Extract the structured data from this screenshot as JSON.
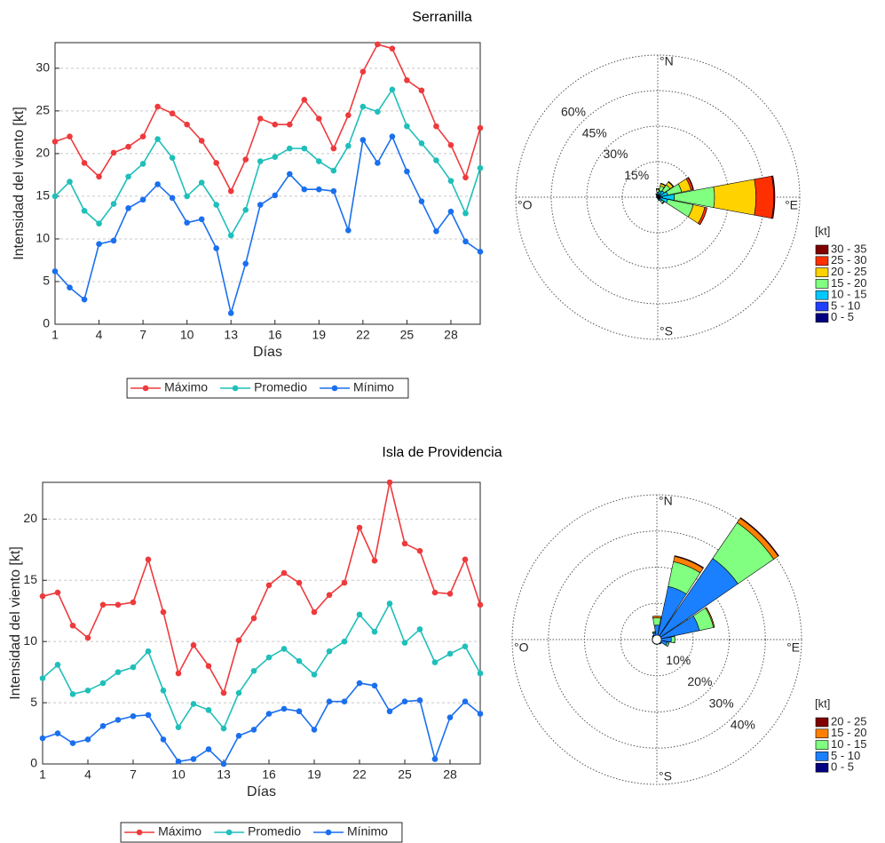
{
  "chart_data": [
    {
      "type": "line",
      "title": "Serranilla",
      "xlabel": "Días",
      "ylabel": "Intensidad del viento [kt]",
      "x": [
        1,
        2,
        3,
        4,
        5,
        6,
        7,
        8,
        9,
        10,
        11,
        12,
        13,
        14,
        15,
        16,
        17,
        18,
        19,
        20,
        21,
        22,
        23,
        24,
        25,
        26,
        27,
        28,
        29,
        30
      ],
      "xlim": [
        1,
        30
      ],
      "xticks": [
        1,
        4,
        7,
        10,
        13,
        16,
        19,
        22,
        25,
        28
      ],
      "ylim": [
        0,
        33
      ],
      "yticks": [
        0,
        5,
        10,
        15,
        20,
        25,
        30
      ],
      "grid": "y",
      "legend": "bottom",
      "series": [
        {
          "name": "Máximo",
          "color": "#ee3a3c",
          "values": [
            21.4,
            22,
            18.9,
            17.3,
            20.1,
            20.8,
            22,
            25.5,
            24.7,
            23.4,
            21.5,
            18.9,
            15.6,
            19.3,
            24.1,
            23.4,
            23.4,
            26.3,
            24.1,
            20.6,
            24.5,
            29.6,
            32.8,
            32.3,
            28.6,
            27.4,
            23.2,
            21,
            17.2,
            23
          ]
        },
        {
          "name": "Promedio",
          "color": "#1fbfba",
          "values": [
            15,
            16.7,
            13.3,
            11.8,
            14.1,
            17.3,
            18.8,
            21.7,
            19.5,
            15,
            16.6,
            14,
            10.4,
            13.4,
            19.1,
            19.6,
            20.6,
            20.6,
            19.1,
            18,
            20.9,
            25.5,
            24.9,
            27.5,
            23.2,
            21.2,
            19.2,
            16.8,
            13,
            18.3
          ]
        },
        {
          "name": "Mínimo",
          "color": "#1a6fef",
          "values": [
            6.2,
            4.3,
            2.9,
            9.4,
            9.8,
            13.6,
            14.6,
            16.4,
            14.8,
            11.9,
            12.3,
            8.9,
            1.3,
            7.1,
            14,
            15.1,
            17.6,
            15.8,
            15.8,
            15.6,
            11,
            21.6,
            18.9,
            22,
            17.9,
            14.4,
            10.9,
            13.2,
            9.7,
            8.5
          ]
        }
      ]
    },
    {
      "type": "windrose",
      "directions": [
        0,
        22.5,
        45,
        67.5,
        90,
        112.5,
        135,
        157.5,
        180,
        202.5,
        225,
        247.5,
        270,
        292.5,
        315,
        337.5
      ],
      "rlim": [
        0,
        60
      ],
      "rticks": [
        {
          "value": 15,
          "label": "15%"
        },
        {
          "value": 30,
          "label": "30%"
        },
        {
          "value": 45,
          "label": "45%"
        },
        {
          "value": 60,
          "label": "60%"
        }
      ],
      "direction_labels": [
        "°N",
        "°E",
        "°S",
        "°O"
      ],
      "legend_title": "[kt]",
      "series": [
        {
          "name": "0 - 5",
          "color": "#000080",
          "values": [
            0.3,
            0.3,
            0.3,
            0.3,
            0.5,
            0.3,
            0.3,
            0.2,
            0.2,
            0.2,
            0.2,
            0.2,
            0.2,
            0.2,
            0.2,
            0.2
          ]
        },
        {
          "name": "5 - 10",
          "color": "#1f3fff",
          "values": [
            0.8,
            1,
            1,
            1,
            1.5,
            1,
            0.8,
            0.5,
            0.3,
            0.2,
            0.2,
            0.2,
            0.3,
            0.3,
            0.3,
            0.5
          ]
        },
        {
          "name": "10 - 15",
          "color": "#00c8ff",
          "values": [
            1,
            1.5,
            2,
            3,
            5,
            3,
            1,
            0.5,
            0.2,
            0,
            0,
            0,
            0,
            0,
            0.2,
            0.5
          ]
        },
        {
          "name": "15 - 20",
          "color": "#80ff80",
          "values": [
            1,
            2,
            3,
            6,
            17,
            11,
            1,
            0.2,
            0,
            0,
            0,
            0,
            0,
            0,
            0,
            0.3
          ]
        },
        {
          "name": "20 - 25",
          "color": "#ffd200",
          "values": [
            0.5,
            1,
            1.5,
            4,
            17.5,
            5,
            0.3,
            0,
            0,
            0,
            0,
            0,
            0,
            0,
            0,
            0
          ]
        },
        {
          "name": "25 - 30",
          "color": "#ff3000",
          "values": [
            0,
            0.2,
            0.3,
            1,
            7.5,
            1,
            0,
            0,
            0,
            0,
            0,
            0,
            0,
            0,
            0,
            0
          ]
        },
        {
          "name": "30 - 35",
          "color": "#800000",
          "values": [
            0,
            0,
            0,
            0.2,
            0.5,
            0,
            0,
            0,
            0,
            0,
            0,
            0,
            0,
            0,
            0,
            0
          ]
        }
      ]
    },
    {
      "type": "line",
      "title": "Isla de Providencia",
      "xlabel": "Días",
      "ylabel": "Intensidad del viento [kt]",
      "x": [
        1,
        2,
        3,
        4,
        5,
        6,
        7,
        8,
        9,
        10,
        11,
        12,
        13,
        14,
        15,
        16,
        17,
        18,
        19,
        20,
        21,
        22,
        23,
        24,
        25,
        26,
        27,
        28,
        29,
        30
      ],
      "xlim": [
        1,
        30
      ],
      "xticks": [
        1,
        4,
        7,
        10,
        13,
        16,
        19,
        22,
        25,
        28
      ],
      "ylim": [
        0,
        23
      ],
      "yticks": [
        0,
        5,
        10,
        15,
        20
      ],
      "grid": "y",
      "legend": "bottom",
      "series": [
        {
          "name": "Máximo",
          "color": "#ee3a3c",
          "values": [
            13.7,
            14,
            11.3,
            10.3,
            13,
            13,
            13.2,
            16.7,
            12.4,
            7.4,
            9.7,
            8,
            5.8,
            10.1,
            11.9,
            14.6,
            15.6,
            14.8,
            12.4,
            13.8,
            14.8,
            19.3,
            16.6,
            23,
            18,
            17.4,
            14,
            13.9,
            16.7,
            13
          ]
        },
        {
          "name": "Promedio",
          "color": "#1fbfba",
          "values": [
            7,
            8.1,
            5.7,
            6,
            6.6,
            7.5,
            7.9,
            9.2,
            6,
            3,
            4.9,
            4.4,
            2.9,
            5.8,
            7.6,
            8.7,
            9.4,
            8.4,
            7.3,
            9.2,
            10,
            12.2,
            10.8,
            13.1,
            9.9,
            11,
            8.3,
            9,
            9.6,
            7.4
          ]
        },
        {
          "name": "Mínimo",
          "color": "#1a6fef",
          "values": [
            2.1,
            2.5,
            1.7,
            2,
            3.1,
            3.6,
            3.9,
            4,
            2,
            0.2,
            0.4,
            1.2,
            0,
            2.3,
            2.8,
            4.1,
            4.5,
            4.3,
            2.8,
            5.1,
            5.1,
            6.6,
            6.4,
            4.3,
            5.1,
            5.2,
            0.4,
            3.8,
            5.1,
            4.1
          ]
        }
      ]
    },
    {
      "type": "windrose",
      "directions": [
        0,
        22.5,
        45,
        67.5,
        90,
        112.5,
        135,
        157.5,
        180,
        202.5,
        225,
        247.5,
        270,
        292.5,
        315,
        337.5
      ],
      "rlim": [
        0,
        40
      ],
      "rticks": [
        {
          "value": 10,
          "label": "10%"
        },
        {
          "value": 20,
          "label": "20%"
        },
        {
          "value": 30,
          "label": "30%"
        },
        {
          "value": 40,
          "label": "40%"
        }
      ],
      "direction_labels": [
        "°N",
        "°E",
        "°S",
        "°O"
      ],
      "legend_title": "[kt]",
      "series": [
        {
          "name": "0 - 5",
          "color": "#000080",
          "values": [
            1,
            1,
            1.2,
            1,
            1,
            1,
            1,
            1,
            1,
            1,
            1,
            1,
            1,
            1,
            1,
            1
          ]
        },
        {
          "name": "5 - 10",
          "color": "#1a80ff",
          "values": [
            3,
            14,
            26,
            11,
            3,
            2,
            0.5,
            0.3,
            0.3,
            0.3,
            0.3,
            0.3,
            0.3,
            0.3,
            0.5,
            1
          ]
        },
        {
          "name": "10 - 15",
          "color": "#80ff80",
          "values": [
            2,
            7,
            12,
            4,
            1,
            0.5,
            0,
            0,
            0,
            0,
            0,
            0,
            0,
            0,
            0,
            0.3
          ]
        },
        {
          "name": "15 - 20",
          "color": "#ff8000",
          "values": [
            0.5,
            1.5,
            1.5,
            0.3,
            0,
            0,
            0,
            0,
            0,
            0,
            0,
            0,
            0,
            0,
            0,
            0
          ]
        },
        {
          "name": "20 - 25",
          "color": "#800000",
          "values": [
            0,
            0.2,
            0.2,
            0,
            0,
            0,
            0,
            0,
            0,
            0,
            0,
            0,
            0,
            0,
            0,
            0
          ]
        }
      ]
    }
  ]
}
